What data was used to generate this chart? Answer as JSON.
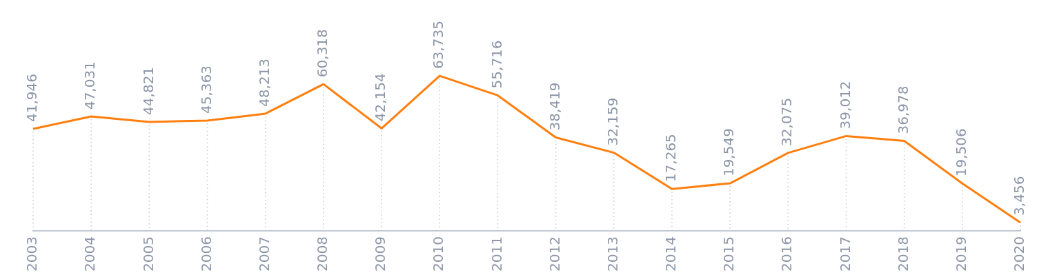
{
  "chart_data": {
    "type": "line",
    "categories": [
      "2003",
      "2004",
      "2005",
      "2006",
      "2007",
      "2008",
      "2009",
      "2010",
      "2011",
      "2012",
      "2013",
      "2014",
      "2015",
      "2016",
      "2017",
      "2018",
      "2019",
      "2020"
    ],
    "series": [
      {
        "color": "#ff7f0e",
        "values": [
          41946,
          47031,
          44821,
          45363,
          48213,
          60318,
          42154,
          63735,
          55716,
          38419,
          32159,
          17265,
          19549,
          32075,
          39012,
          36978,
          19506,
          3456
        ],
        "value_labels": [
          "41,946",
          "47,031",
          "44,821",
          "45,363",
          "48,213",
          "60,318",
          "42,154",
          "63,735",
          "55,716",
          "38,419",
          "32,159",
          "17,265",
          "19,549",
          "32,075",
          "39,012",
          "36,978",
          "19,506",
          "3,456"
        ]
      }
    ],
    "grid": "x",
    "legend": false,
    "marker": "none",
    "line_style": "solid"
  }
}
